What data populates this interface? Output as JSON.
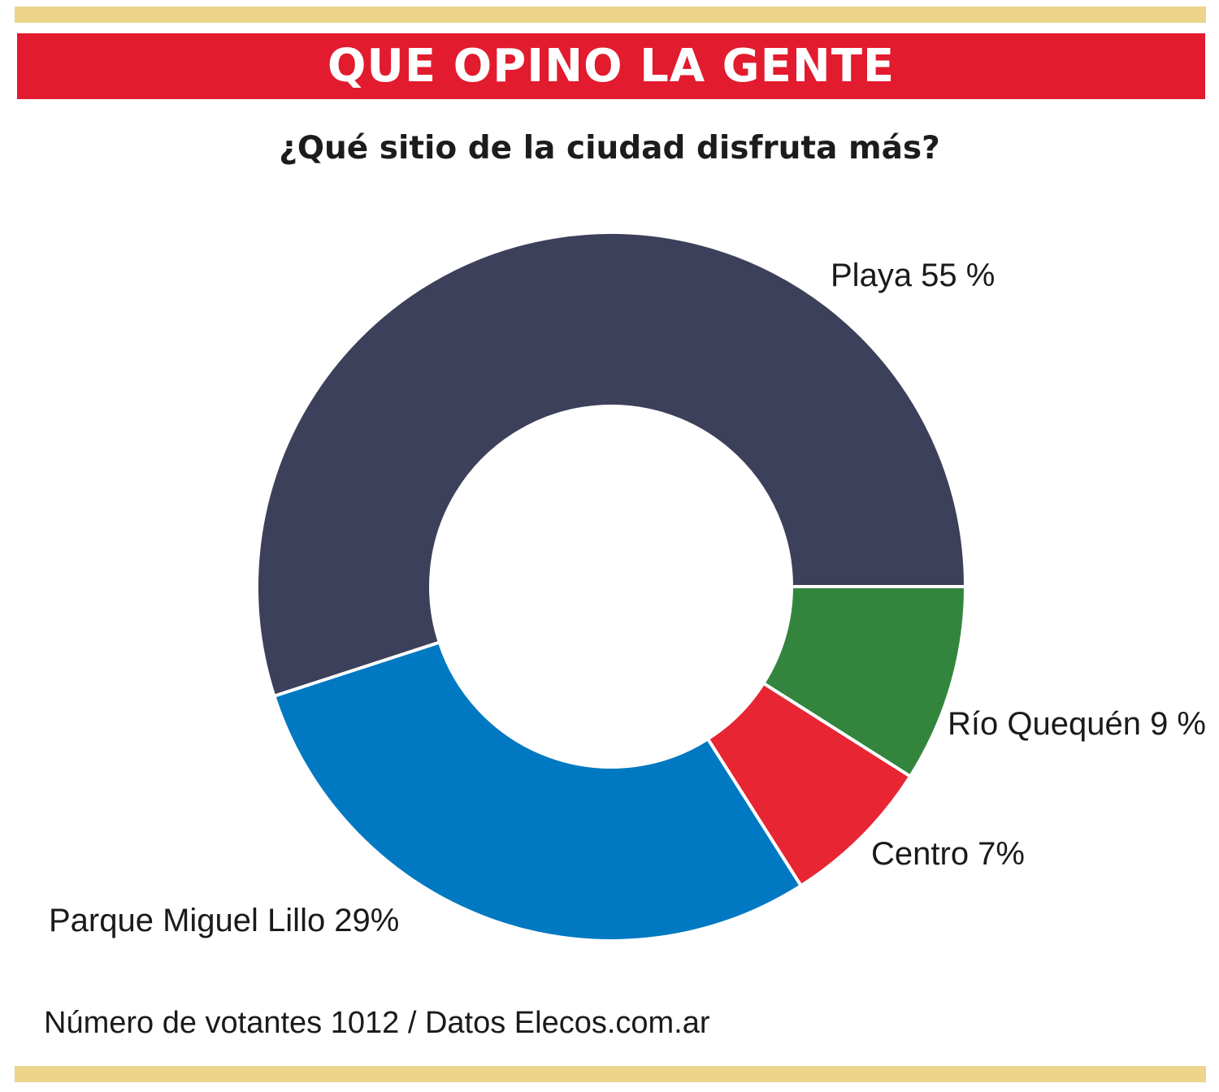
{
  "header": {
    "title": "QUE OPINO LA GENTE",
    "subtitle": "¿Qué sitio de la ciudad disfruta más?"
  },
  "chart_data": {
    "type": "pie",
    "style": "donut",
    "slices": [
      {
        "label": "Playa  55 %",
        "category": "Playa",
        "value": 55,
        "color": "#3d405a"
      },
      {
        "label": "Río Quequén 9 %",
        "category": "Río Quequén",
        "value": 9,
        "color": "#33853e"
      },
      {
        "label": "Centro  7%",
        "category": "Centro",
        "value": 7,
        "color": "#e72533"
      },
      {
        "label": "Parque Miguel Lillo 29%",
        "category": "Parque Miguel Lillo",
        "value": 29,
        "color": "#0179c2"
      }
    ]
  },
  "footer": {
    "note": "Número de votantes 1012 / Datos Elecos.com.ar"
  },
  "colors": {
    "banner": "#e21b2e",
    "rule": "#ecd58a"
  }
}
